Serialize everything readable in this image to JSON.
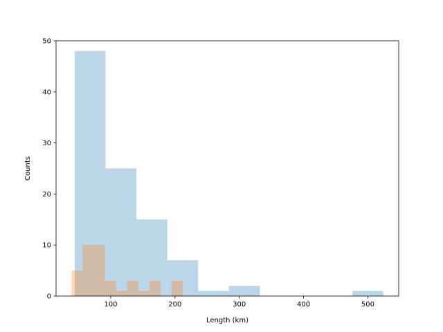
{
  "chart_data": {
    "type": "histogram",
    "x_label": "Length (km)",
    "y_label": "Counts",
    "xlim": [
      15,
      548
    ],
    "xticks": [
      100,
      200,
      300,
      400,
      500
    ],
    "ylim": [
      0,
      50
    ],
    "yticks": [
      0,
      10,
      20,
      30,
      40,
      50
    ],
    "opacity": 0.3,
    "series": [
      {
        "color": "#1f77b4",
        "bins": [
          44,
          92,
          140,
          188,
          236,
          284,
          332,
          380,
          428,
          476,
          524
        ],
        "values": [
          48,
          25,
          15,
          7,
          1,
          2,
          0,
          0,
          0,
          1
        ]
      },
      {
        "color": "#ff7f0e",
        "bins": [
          39,
          56.3,
          73.6,
          90.9,
          108.2,
          125.5,
          142.8,
          160.1,
          177.4,
          194.7,
          212
        ],
        "values": [
          5,
          10,
          10,
          3,
          1,
          3,
          1,
          3,
          0,
          3
        ]
      }
    ]
  }
}
